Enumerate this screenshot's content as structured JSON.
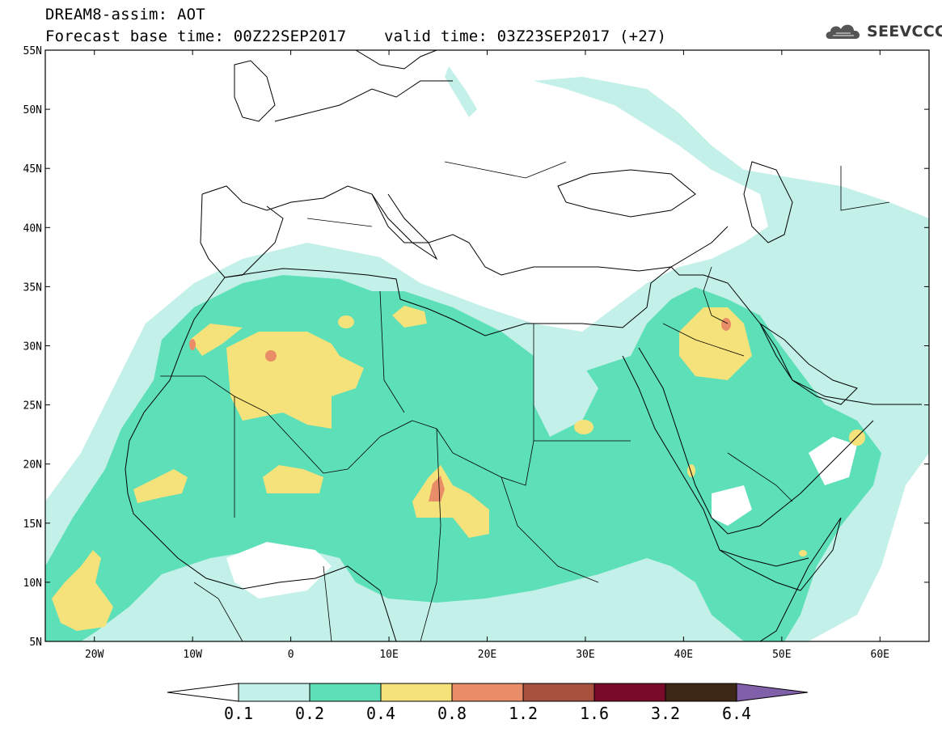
{
  "header": {
    "line1": "DREAM8-assim: AOT",
    "line2": "Forecast base time: 00Z22SEP2017    valid time: 03Z23SEP2017 (+27)"
  },
  "logo": {
    "text": "SEEVCCC",
    "icon": "cloud-logo-icon"
  },
  "map": {
    "extent": {
      "lon": [
        -25,
        65
      ],
      "lat": [
        5,
        55
      ]
    },
    "lat_ticks": [
      "55N",
      "50N",
      "45N",
      "40N",
      "35N",
      "30N",
      "25N",
      "20N",
      "15N",
      "10N",
      "5N"
    ],
    "lon_ticks": [
      "20W",
      "10W",
      "0",
      "10E",
      "20E",
      "30E",
      "40E",
      "50E",
      "60E"
    ],
    "field": "Aerosol Optical Thickness (AOT)"
  },
  "colorbar": {
    "labels": [
      "0.1",
      "0.2",
      "0.4",
      "0.8",
      "1.2",
      "1.6",
      "3.2",
      "6.4"
    ],
    "colors": [
      "#ffffff",
      "#c3f0e8",
      "#5ddfb8",
      "#f5e27a",
      "#e88d68",
      "#a8503e",
      "#7a0a2a",
      "#3d2818",
      "#8060a8"
    ]
  }
}
